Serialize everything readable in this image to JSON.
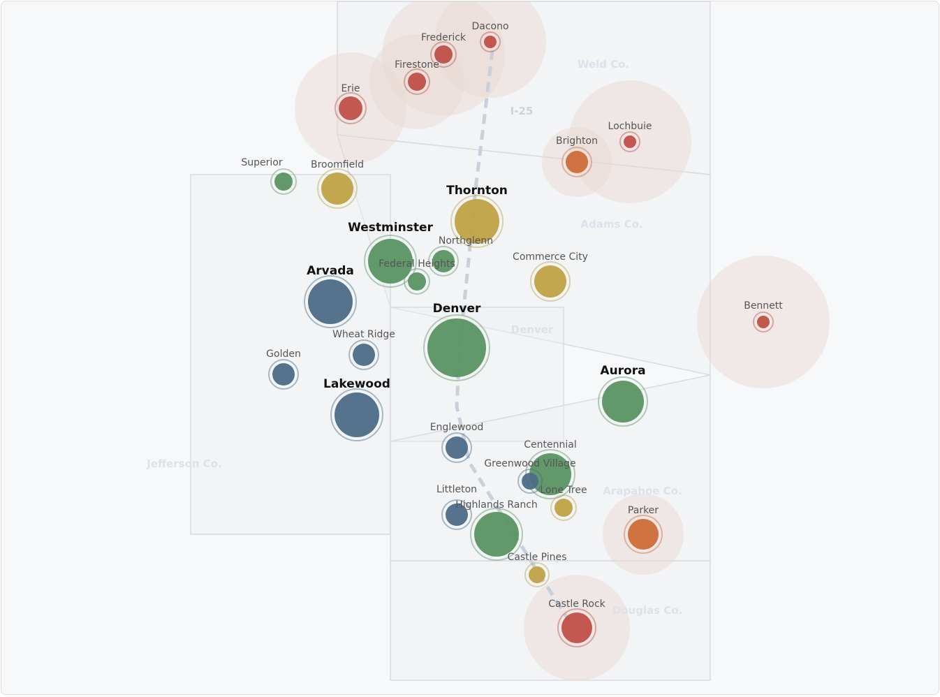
{
  "colors": {
    "red": "#bf5048",
    "orange": "#cc6d38",
    "gold": "#bfa245",
    "green": "#5a9463",
    "blue": "#4c6b86",
    "halo": "#e9d6d1"
  },
  "counties": [
    "Weld Co.",
    "Adams Co.",
    "Jefferson Co.",
    "Denver",
    "Arapahoe Co.",
    "Douglas Co."
  ],
  "highway": "I-25",
  "cities": [
    {
      "name": "Dacono",
      "color": "red"
    },
    {
      "name": "Frederick",
      "color": "red"
    },
    {
      "name": "Firestone",
      "color": "red"
    },
    {
      "name": "Erie",
      "color": "red"
    },
    {
      "name": "Lochbuie",
      "color": "red"
    },
    {
      "name": "Brighton",
      "color": "orange"
    },
    {
      "name": "Superior",
      "color": "green"
    },
    {
      "name": "Broomfield",
      "color": "gold"
    },
    {
      "name": "Thornton",
      "color": "gold"
    },
    {
      "name": "Westminster",
      "color": "green"
    },
    {
      "name": "Northglenn",
      "color": "green"
    },
    {
      "name": "Federal Heights",
      "color": "green"
    },
    {
      "name": "Commerce City",
      "color": "gold"
    },
    {
      "name": "Arvada",
      "color": "blue"
    },
    {
      "name": "Denver",
      "color": "green"
    },
    {
      "name": "Wheat Ridge",
      "color": "blue"
    },
    {
      "name": "Golden",
      "color": "blue"
    },
    {
      "name": "Lakewood",
      "color": "blue"
    },
    {
      "name": "Bennett",
      "color": "red"
    },
    {
      "name": "Aurora",
      "color": "green"
    },
    {
      "name": "Englewood",
      "color": "blue"
    },
    {
      "name": "Centennial",
      "color": "green"
    },
    {
      "name": "Greenwood Village",
      "color": "blue"
    },
    {
      "name": "Lone Tree",
      "color": "gold"
    },
    {
      "name": "Parker",
      "color": "orange"
    },
    {
      "name": "Littleton",
      "color": "blue"
    },
    {
      "name": "Highlands Ranch",
      "color": "green"
    },
    {
      "name": "Castle Pines",
      "color": "gold"
    },
    {
      "name": "Castle Rock",
      "color": "red"
    }
  ]
}
